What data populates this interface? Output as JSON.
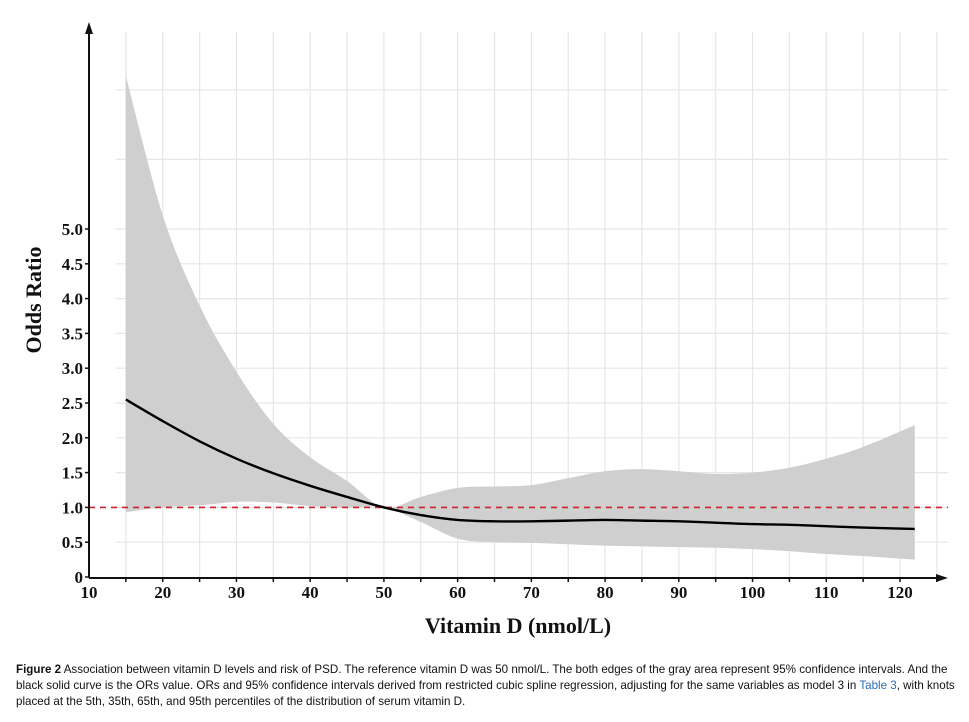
{
  "chart_data": {
    "type": "line",
    "xlabel": "Vitamin D (nmol/L)",
    "ylabel": "Odds Ratio",
    "xlim": [
      10,
      127
    ],
    "ylim": [
      0,
      8
    ],
    "x_ticks": [
      10,
      20,
      30,
      40,
      50,
      60,
      70,
      80,
      90,
      100,
      110,
      120
    ],
    "y_ticks": [
      0,
      0.5,
      1.0,
      1.5,
      2.0,
      2.5,
      3.0,
      3.5,
      4.0,
      4.5,
      5.0
    ],
    "y_tick_labels": [
      "0",
      "0.5",
      "1.0",
      "1.5",
      "2.0",
      "2.5",
      "3.0",
      "3.5",
      "4.0",
      "4.5",
      "5.0"
    ],
    "grid": true,
    "reference_line": {
      "y": 1.0,
      "color": "#d0222b",
      "style": "dashed"
    },
    "series": [
      {
        "x": [
          15,
          20,
          25,
          30,
          35,
          40,
          45,
          50,
          55,
          60,
          65,
          70,
          75,
          80,
          85,
          90,
          95,
          100,
          105,
          110,
          115,
          122
        ],
        "values": [
          2.55,
          2.24,
          1.95,
          1.7,
          1.49,
          1.31,
          1.15,
          1.0,
          0.89,
          0.82,
          0.8,
          0.8,
          0.81,
          0.82,
          0.81,
          0.8,
          0.78,
          0.76,
          0.75,
          0.73,
          0.71,
          0.69
        ],
        "lower": [
          0.93,
          1.0,
          1.03,
          1.08,
          1.07,
          1.02,
          1.0,
          1.0,
          0.79,
          0.55,
          0.5,
          0.49,
          0.47,
          0.45,
          0.44,
          0.43,
          0.42,
          0.4,
          0.37,
          0.33,
          0.3,
          0.25
        ],
        "upper": [
          7.2,
          5.2,
          3.9,
          2.95,
          2.2,
          1.72,
          1.38,
          1.0,
          1.15,
          1.28,
          1.3,
          1.32,
          1.42,
          1.52,
          1.55,
          1.52,
          1.48,
          1.5,
          1.57,
          1.7,
          1.87,
          2.18
        ],
        "color": "#000000",
        "band_color": "#cfcfcf"
      }
    ]
  },
  "caption": {
    "label": "Figure 2",
    "text_1": " Association between vitamin D levels and risk of PSD. The reference vitamin D was 50 nmol/L. The both edges of the gray area represent 95% confidence intervals. And the black solid curve is the ORs value. ORs and 95% confidence intervals derived from restricted cubic spline regression, adjusting for the same variables as model 3 in ",
    "link": "Table 3",
    "text_2": ", with knots placed at the 5th, 35th, 65th, and 95th percentiles of the distribution of serum vitamin D."
  }
}
